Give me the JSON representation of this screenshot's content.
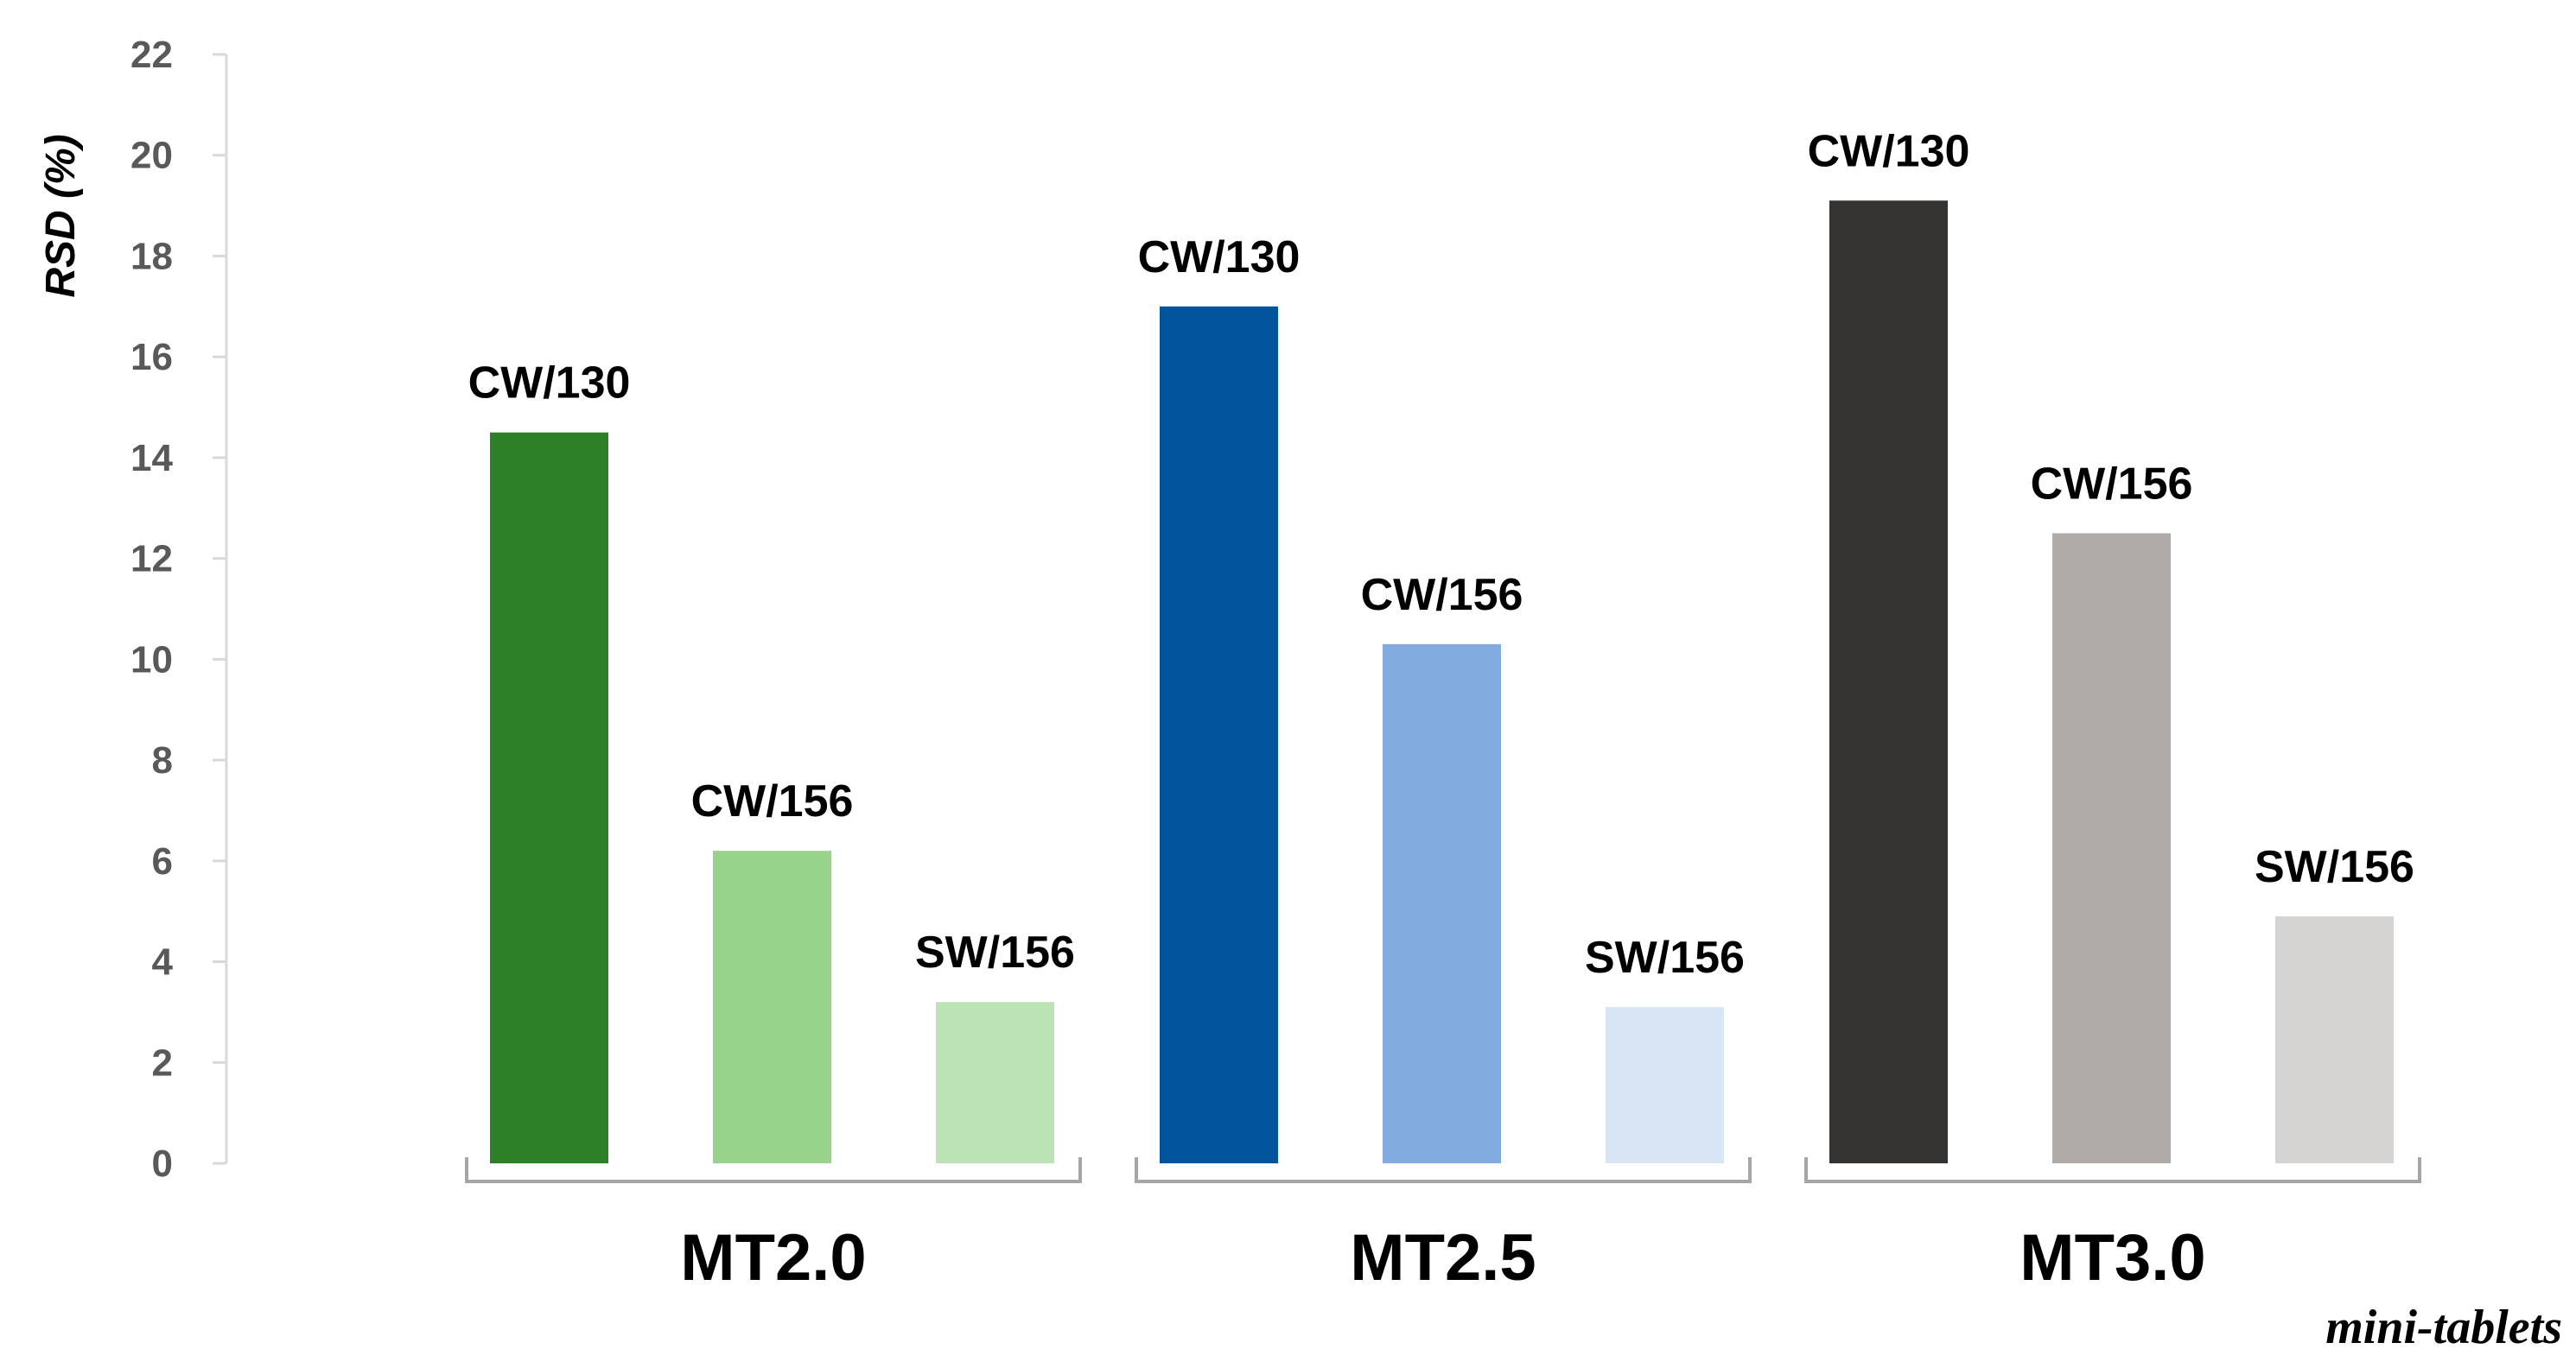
{
  "chart_data": {
    "type": "bar",
    "ylabel": "RSD (%)",
    "xlabel": "mini-tablets",
    "ylim": [
      0,
      22
    ],
    "yticks": [
      0,
      2,
      4,
      6,
      8,
      10,
      12,
      14,
      16,
      18,
      20,
      22
    ],
    "grid": false,
    "legend": "none",
    "groups": [
      {
        "name": "MT2.0",
        "bars": [
          {
            "label": "CW/130",
            "value": 14.5,
            "color": "#2e8028"
          },
          {
            "label": "CW/156",
            "value": 6.2,
            "color": "#97d38a"
          },
          {
            "label": "SW/156",
            "value": 3.2,
            "color": "#bce3b5"
          }
        ]
      },
      {
        "name": "MT2.5",
        "bars": [
          {
            "label": "CW/130",
            "value": 17.0,
            "color": "#02549d"
          },
          {
            "label": "CW/156",
            "value": 10.3,
            "color": "#82abdf"
          },
          {
            "label": "SW/156",
            "value": 3.1,
            "color": "#d8e5f5"
          }
        ]
      },
      {
        "name": "MT3.0",
        "bars": [
          {
            "label": "CW/130",
            "value": 19.1,
            "color": "#353232"
          },
          {
            "label": "CW/156",
            "value": 12.5,
            "color": "#b0aba9"
          },
          {
            "label": "SW/156",
            "value": 4.9,
            "color": "#d6d3d3"
          }
        ]
      }
    ]
  }
}
